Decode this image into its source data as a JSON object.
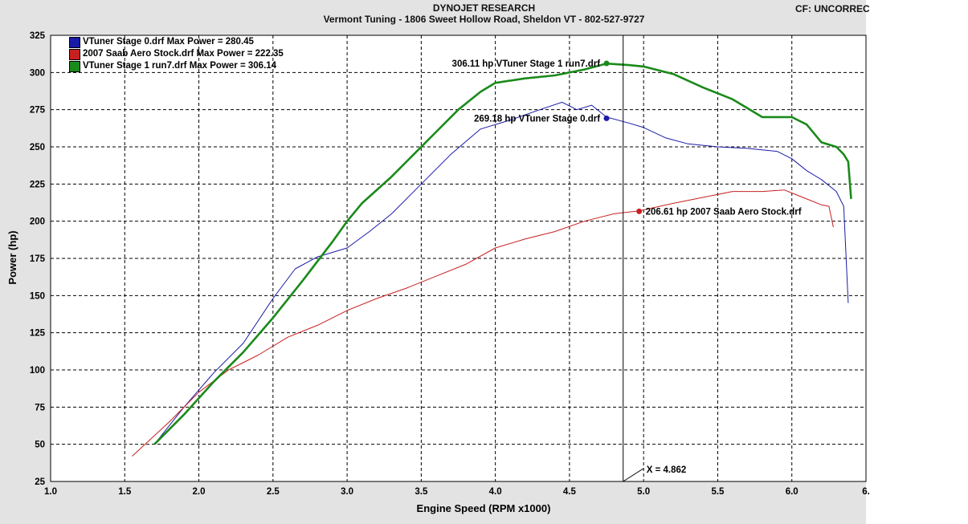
{
  "header": {
    "title": "DYNOJET RESEARCH",
    "subtitle": "Vermont Tuning - 1806 Sweet Hollow Road, Sheldon VT - 802-527-9727",
    "correction": "CF: UNCORREC"
  },
  "chart_data": {
    "type": "line",
    "xlabel": "Engine Speed (RPM x1000)",
    "ylabel": "Power (hp)",
    "xlim": [
      1.0,
      6.5
    ],
    "ylim": [
      25,
      325
    ],
    "x_ticks": [
      "1.0",
      "1.5",
      "2.0",
      "2.5",
      "3.0",
      "3.5",
      "4.0",
      "4.5",
      "5.0",
      "5.5",
      "6.0",
      "6."
    ],
    "y_ticks": [
      "25",
      "50",
      "75",
      "100",
      "125",
      "150",
      "175",
      "200",
      "225",
      "250",
      "275",
      "300",
      "325"
    ],
    "grid": true,
    "legend_position": "top-left",
    "cursor": {
      "x": 4.862,
      "label": "X = 4.862"
    },
    "series": [
      {
        "name": "VTuner Stage 0.drf Max Power = 280.45",
        "color": "#1a1aa8",
        "x": [
          1.7,
          1.9,
          2.1,
          2.3,
          2.5,
          2.65,
          2.8,
          3.0,
          3.15,
          3.3,
          3.5,
          3.7,
          3.9,
          4.1,
          4.3,
          4.45,
          4.55,
          4.65,
          4.75,
          4.9,
          5.0,
          5.15,
          5.3,
          5.5,
          5.7,
          5.9,
          6.0,
          6.1,
          6.2,
          6.3,
          6.35,
          6.38
        ],
        "y": [
          50,
          75,
          98,
          118,
          148,
          168,
          176,
          182,
          193,
          205,
          225,
          245,
          262,
          268,
          275,
          280,
          275,
          278,
          270,
          266,
          263,
          256,
          252,
          250,
          249,
          247,
          242,
          234,
          228,
          220,
          210,
          145
        ]
      },
      {
        "name": "2007 Saab Aero Stock.drf Max Power = 222.35",
        "color": "#c82020",
        "x": [
          1.55,
          1.8,
          2.0,
          2.2,
          2.4,
          2.6,
          2.8,
          3.0,
          3.2,
          3.4,
          3.6,
          3.8,
          4.0,
          4.2,
          4.4,
          4.6,
          4.8,
          4.97,
          5.2,
          5.4,
          5.6,
          5.8,
          5.95,
          6.0,
          6.1,
          6.2,
          6.25,
          6.28
        ],
        "y": [
          42,
          65,
          85,
          100,
          110,
          122,
          130,
          140,
          148,
          155,
          163,
          171,
          182,
          188,
          193,
          200,
          205,
          207,
          212,
          216,
          220,
          220,
          221,
          219,
          215,
          211,
          210,
          196
        ]
      },
      {
        "name": "VTuner Stage 1 run7.drf Max Power = 306.14",
        "color": "#1a8a1a",
        "x": [
          1.7,
          1.9,
          2.1,
          2.3,
          2.5,
          2.7,
          2.9,
          3.0,
          3.1,
          3.3,
          3.45,
          3.6,
          3.75,
          3.9,
          4.0,
          4.2,
          4.4,
          4.6,
          4.75,
          4.9,
          5.0,
          5.2,
          5.4,
          5.6,
          5.8,
          6.0,
          6.1,
          6.2,
          6.3,
          6.35,
          6.38,
          6.4
        ],
        "y": [
          50,
          70,
          92,
          112,
          135,
          160,
          186,
          200,
          212,
          230,
          245,
          260,
          275,
          287,
          293,
          296,
          298,
          302,
          306,
          305,
          304,
          299,
          290,
          282,
          270,
          270,
          265,
          253,
          250,
          245,
          240,
          215
        ]
      }
    ],
    "annotations": [
      {
        "text": "306.11 hp VTuner Stage 1 run7.drf",
        "x": 4.75,
        "y": 306.11,
        "color": "#1a8a1a"
      },
      {
        "text": "269.18 hp VTuner Stage 0.drf",
        "x": 4.75,
        "y": 269.18,
        "color": "#1a1aa8"
      },
      {
        "text": "206.61 hp 2007 Saab Aero Stock.drf",
        "x": 4.97,
        "y": 206.61,
        "color": "#c82020"
      }
    ]
  }
}
